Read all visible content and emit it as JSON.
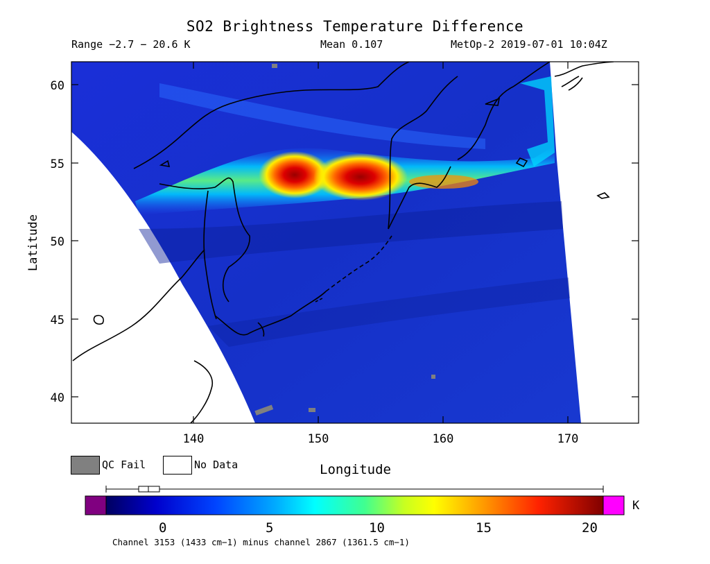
{
  "title": "SO2 Brightness Temperature Difference",
  "subtitle": {
    "range": "Range −2.7 − 20.6 K",
    "mean": "Mean 0.107",
    "satellite_time": "MetOp-2 2019-07-01 10:04Z"
  },
  "axes": {
    "xlabel": "Longitude",
    "ylabel": "Latitude",
    "x_ticks": [
      "140",
      "150",
      "160",
      "170"
    ],
    "y_ticks": [
      "60",
      "55",
      "50",
      "45",
      "40"
    ],
    "x_range": [
      130,
      175.5
    ],
    "y_range": [
      38.3,
      61.5
    ]
  },
  "legend": {
    "qc_fail": "QC Fail",
    "no_data": "No Data",
    "qc_fail_color": "#808080",
    "no_data_color": "#ffffff"
  },
  "colorbar": {
    "unit": "K",
    "ticks": [
      "0",
      "5",
      "10",
      "15",
      "20"
    ],
    "tick_values": [
      0,
      5,
      10,
      15,
      20
    ],
    "range": [
      -2.7,
      20.6
    ],
    "under_color": "#800080",
    "over_color": "#ff00ff",
    "caption": "Channel 3153 (1433 cm−1) minus channel 2867 (1361.5 cm−1)"
  },
  "chart_data": {
    "type": "heatmap",
    "title": "SO2 Brightness Temperature Difference",
    "xlabel": "Longitude",
    "ylabel": "Latitude",
    "xlim": [
      130,
      175.5
    ],
    "ylim": [
      38.3,
      61.5
    ],
    "value_range": [
      -2.7,
      20.6
    ],
    "mean": 0.107,
    "unit": "K",
    "plume_hotspots": [
      {
        "lon": 148.0,
        "lat": 54.2,
        "value": 20
      },
      {
        "lon": 153.5,
        "lat": 54.0,
        "value": 18
      }
    ]
  }
}
